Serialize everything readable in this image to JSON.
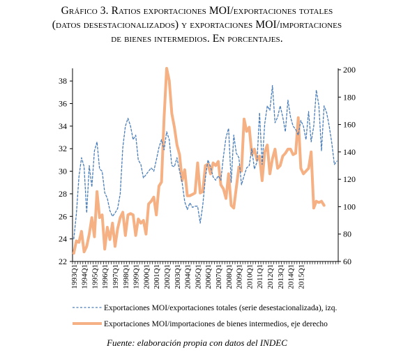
{
  "title": {
    "line1": "Gráfico 3. Ratios exportaciones MOI/exportaciones totales",
    "line2": "(datos desestacionalizados) y exportaciones MOI/importaciones",
    "line3": "de bienes intermedios. En porcentajes."
  },
  "source": "Fuente: elaboración propia con datos del INDEC",
  "colors": {
    "series_left": "#4a7ebb",
    "series_right": "#f5b183",
    "axis": "#000000"
  },
  "chart_data": {
    "type": "line",
    "title": "Gráfico 3. Ratios exportaciones MOI/exportaciones totales (datos desestacionalizados) y exportaciones MOI/importaciones de bienes intermedios. En porcentajes.",
    "xlabel": "",
    "ylabel": "",
    "x_tick_labels": [
      "1993Q1",
      "1994Q1",
      "1995Q1",
      "1996Q1",
      "1997Q1",
      "1998Q1",
      "1999Q1",
      "2000Q1",
      "2001Q1",
      "2002Q1",
      "2003Q1",
      "2004Q1",
      "2005Q1",
      "2006Q1",
      "2007Q1",
      "2008Q1",
      "2009Q1",
      "2010Q1",
      "2011Q1",
      "2012Q1",
      "2013Q1",
      "2014Q1",
      "2015Q1"
    ],
    "y_left": {
      "ticks": [
        22,
        24,
        26,
        28,
        30,
        32,
        34,
        36,
        38
      ],
      "ylim": [
        22,
        39
      ]
    },
    "y_right": {
      "ticks": [
        60,
        80,
        100,
        120,
        140,
        160,
        180,
        200
      ],
      "ylim": [
        60,
        200
      ]
    },
    "grid": false,
    "legend_position": "bottom",
    "series": [
      {
        "name": "Exportaciones MOI/exportaciones totales (serie desestacionalizada), izq.",
        "axis": "left",
        "style": "dashed",
        "values": [
          24.0,
          26.2,
          29.5,
          31.2,
          30.4,
          26.3,
          30.5,
          28.6,
          31.8,
          32.6,
          30.2,
          30.0,
          28.1,
          27.6,
          26.5,
          26.0,
          26.3,
          26.7,
          28.0,
          32.1,
          34.0,
          34.7,
          34.0,
          32.8,
          33.2,
          31.0,
          30.6,
          29.4,
          29.7,
          30.0,
          30.3,
          30.0,
          31.0,
          32.1,
          32.8,
          31.9,
          33.5,
          32.8,
          30.5,
          30.4,
          31.2,
          30.0,
          29.0,
          27.3,
          26.6,
          27.2,
          26.8,
          26.9,
          26.9,
          25.4,
          27.0,
          29.4,
          31.0,
          30.4,
          29.5,
          29.2,
          29.6,
          29.2,
          31.3,
          33.0,
          33.8,
          29.0,
          33.2,
          31.6,
          31.2,
          28.8,
          29.6,
          30.3,
          30.5,
          32.0,
          30.2,
          30.8,
          35.2,
          30.6,
          34.2,
          35.8,
          35.4,
          37.6,
          34.3,
          34.8,
          35.8,
          34.8,
          33.5,
          36.3,
          34.8,
          34.0,
          33.7,
          33.2,
          34.5,
          34.0,
          32.8,
          35.3,
          32.6,
          34.0,
          37.2,
          35.8,
          31.8,
          35.8,
          35.2,
          34.0,
          32.5,
          30.6,
          30.9
        ]
      },
      {
        "name": "Exportaciones MOI/importaciones de bienes intermedios, eje derecho",
        "axis": "right",
        "style": "solid",
        "values": [
          66,
          75,
          74,
          82,
          67,
          71,
          80,
          92,
          78,
          111,
          92,
          94,
          69,
          85,
          76,
          88,
          71,
          84,
          92,
          96,
          79,
          94,
          95,
          94,
          79,
          91,
          88,
          90,
          80,
          102,
          104,
          107,
          94,
          115,
          118,
          165,
          201,
          192,
          168,
          158,
          145,
          138,
          119,
          127,
          108,
          108,
          109,
          110,
          132,
          110,
          111,
          130,
          131,
          124,
          132,
          130,
          133,
          116,
          113,
          106,
          124,
          101,
          99,
          114,
          129,
          126,
          164,
          155,
          158,
          138,
          142,
          134,
          137,
          119,
          140,
          145,
          124,
          135,
          142,
          128,
          130,
          137,
          139,
          142,
          142,
          138,
          139,
          165,
          128,
          124,
          126,
          128,
          140,
          99,
          104,
          103,
          104,
          101
        ]
      }
    ]
  }
}
